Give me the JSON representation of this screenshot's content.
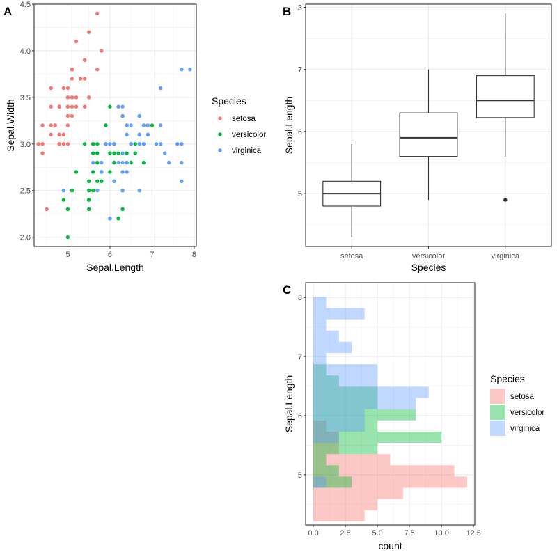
{
  "chart_data": [
    {
      "panel": "A",
      "type": "scatter",
      "title": "",
      "xlabel": "Sepal.Length",
      "ylabel": "Sepal.Width",
      "xlim": [
        4.2,
        8.05
      ],
      "ylim": [
        1.9,
        4.5
      ],
      "xticks": [
        5,
        6,
        7,
        8
      ],
      "xtick_labels": [
        "5",
        "6",
        "7",
        "8"
      ],
      "yticks": [
        2.0,
        2.5,
        3.0,
        3.5,
        4.0,
        4.5
      ],
      "ytick_labels": [
        "2.0",
        "2.5",
        "3.0",
        "3.5",
        "4.0",
        "4.5"
      ],
      "grid": true,
      "legend": {
        "title": "Species",
        "placement": "right"
      },
      "series": [
        {
          "name": "setosa",
          "color": "#F8766D",
          "x": [
            5.1,
            4.9,
            4.7,
            4.6,
            5.0,
            5.4,
            4.6,
            5.0,
            4.4,
            4.9,
            5.4,
            4.8,
            4.8,
            4.3,
            5.8,
            5.7,
            5.4,
            5.1,
            5.7,
            5.1,
            5.4,
            5.1,
            4.6,
            5.1,
            4.8,
            5.0,
            5.0,
            5.2,
            5.2,
            4.7,
            4.8,
            5.4,
            5.2,
            5.5,
            4.9,
            5.0,
            5.5,
            4.9,
            4.4,
            5.1,
            5.0,
            4.5,
            4.4,
            5.0,
            5.1,
            4.8,
            5.1,
            4.6,
            5.3,
            5.0
          ],
          "y": [
            3.5,
            3.0,
            3.2,
            3.1,
            3.6,
            3.9,
            3.4,
            3.4,
            2.9,
            3.1,
            3.7,
            3.4,
            3.0,
            3.0,
            4.0,
            4.4,
            3.9,
            3.5,
            3.8,
            3.8,
            3.4,
            3.7,
            3.6,
            3.3,
            3.4,
            3.0,
            3.4,
            3.5,
            3.4,
            3.2,
            3.1,
            3.4,
            4.1,
            4.2,
            3.1,
            3.2,
            3.5,
            3.6,
            3.0,
            3.4,
            3.5,
            2.3,
            3.2,
            3.5,
            3.8,
            3.0,
            3.8,
            3.2,
            3.7,
            3.3
          ]
        },
        {
          "name": "versicolor",
          "color": "#00BA38",
          "x": [
            7.0,
            6.4,
            6.9,
            5.5,
            6.5,
            5.7,
            6.3,
            4.9,
            6.6,
            5.2,
            5.0,
            5.9,
            6.0,
            6.1,
            5.6,
            6.7,
            5.6,
            5.8,
            6.2,
            5.6,
            5.9,
            6.1,
            6.3,
            6.1,
            6.4,
            6.6,
            6.8,
            6.7,
            6.0,
            5.7,
            5.5,
            5.5,
            5.8,
            6.0,
            5.4,
            6.0,
            6.7,
            6.3,
            5.6,
            5.5,
            5.5,
            6.1,
            5.8,
            5.0,
            5.6,
            5.7,
            5.7,
            6.2,
            5.1,
            5.7
          ],
          "y": [
            3.2,
            3.2,
            3.1,
            2.3,
            2.8,
            2.8,
            3.3,
            2.4,
            2.9,
            2.7,
            2.0,
            3.0,
            2.2,
            2.9,
            2.9,
            3.1,
            3.0,
            2.7,
            2.2,
            2.5,
            3.2,
            2.8,
            2.5,
            2.8,
            2.9,
            3.0,
            2.8,
            3.0,
            2.9,
            2.6,
            2.4,
            2.4,
            2.7,
            2.7,
            3.0,
            3.4,
            3.1,
            2.3,
            3.0,
            2.5,
            2.6,
            3.0,
            2.6,
            2.3,
            2.7,
            3.0,
            2.9,
            2.9,
            2.5,
            2.8
          ]
        },
        {
          "name": "virginica",
          "color": "#619CFF",
          "x": [
            6.3,
            5.8,
            7.1,
            6.3,
            6.5,
            7.6,
            4.9,
            7.3,
            6.7,
            7.2,
            6.5,
            6.4,
            6.8,
            5.7,
            5.8,
            6.4,
            6.5,
            7.7,
            7.7,
            6.0,
            6.9,
            5.6,
            7.7,
            6.3,
            6.7,
            7.2,
            6.2,
            6.1,
            6.4,
            7.2,
            7.4,
            7.9,
            6.4,
            6.3,
            6.1,
            7.7,
            6.3,
            6.4,
            6.0,
            6.9,
            6.7,
            6.9,
            5.8,
            6.8,
            6.7,
            6.7,
            6.3,
            6.5,
            6.2,
            5.9
          ],
          "y": [
            3.3,
            2.7,
            3.0,
            2.9,
            3.0,
            3.0,
            2.5,
            2.9,
            2.5,
            3.6,
            3.2,
            2.7,
            3.0,
            2.5,
            2.8,
            3.2,
            3.0,
            3.8,
            2.6,
            2.2,
            3.2,
            2.8,
            2.8,
            2.7,
            3.3,
            3.2,
            2.8,
            3.0,
            2.8,
            3.0,
            2.8,
            3.8,
            2.8,
            2.8,
            2.6,
            3.0,
            3.4,
            3.1,
            3.0,
            3.1,
            3.1,
            3.1,
            2.7,
            3.2,
            3.3,
            3.0,
            2.5,
            3.0,
            3.4,
            3.0
          ]
        }
      ]
    },
    {
      "panel": "B",
      "type": "box",
      "title": "",
      "xlabel": "Species",
      "ylabel": "Sepal.Length",
      "ylim": [
        4.15,
        8.05
      ],
      "yticks": [
        5,
        6,
        7,
        8
      ],
      "ytick_labels": [
        "5",
        "6",
        "7",
        "8"
      ],
      "grid": true,
      "categories": [
        "setosa",
        "versicolor",
        "virginica"
      ],
      "boxes": [
        {
          "name": "setosa",
          "min": 4.3,
          "q1": 4.8,
          "median": 5.0,
          "q3": 5.2,
          "max": 5.8,
          "outliers": []
        },
        {
          "name": "versicolor",
          "min": 4.9,
          "q1": 5.6,
          "median": 5.9,
          "q3": 6.3,
          "max": 7.0,
          "outliers": []
        },
        {
          "name": "virginica",
          "min": 5.6,
          "q1": 6.225,
          "median": 6.5,
          "q3": 6.9,
          "max": 7.9,
          "outliers": [
            4.9
          ]
        }
      ]
    },
    {
      "panel": "C",
      "type": "bar",
      "orientation": "horizontal-histogram",
      "position": "identity",
      "alpha": 0.4,
      "title": "",
      "xlabel": "count",
      "ylabel": "Sepal.Length",
      "xlim": [
        -0.6,
        12.6
      ],
      "ylim": [
        4.15,
        8.25
      ],
      "xticks": [
        0,
        2.5,
        5,
        7.5,
        10,
        12.5
      ],
      "xtick_labels": [
        "0.0",
        "2.5",
        "5.0",
        "7.5",
        "10.0",
        "12.5"
      ],
      "yticks": [
        5,
        6,
        7,
        8
      ],
      "ytick_labels": [
        "5",
        "6",
        "7",
        "8"
      ],
      "grid": true,
      "legend": {
        "title": "Species",
        "placement": "right"
      },
      "bin_starts": [
        4.21,
        4.4,
        4.59,
        4.78,
        4.97,
        5.16,
        5.35,
        5.54,
        5.73,
        5.92,
        6.11,
        6.3,
        6.49,
        6.68,
        6.87,
        7.06,
        7.25,
        7.44,
        7.63,
        7.82
      ],
      "bin_width": 0.19,
      "series": [
        {
          "name": "setosa",
          "color": "#F8766D",
          "counts": [
            4,
            5,
            7,
            12,
            11,
            6,
            2,
            2,
            1,
            0,
            0,
            0,
            0,
            0,
            0,
            0,
            0,
            0,
            0,
            0
          ]
        },
        {
          "name": "versicolor",
          "color": "#00BA38",
          "counts": [
            0,
            0,
            0,
            3,
            2,
            1,
            5,
            10,
            5,
            8,
            5,
            5,
            2,
            1,
            0,
            0,
            0,
            0,
            0,
            0
          ]
        },
        {
          "name": "virginica",
          "color": "#619CFF",
          "counts": [
            0,
            0,
            0,
            1,
            0,
            0,
            0,
            2,
            4,
            4,
            8,
            9,
            5,
            5,
            1,
            3,
            2,
            1,
            4,
            1
          ]
        }
      ]
    }
  ],
  "panels": {
    "A": {
      "tag": "A"
    },
    "B": {
      "tag": "B"
    },
    "C": {
      "tag": "C"
    }
  }
}
